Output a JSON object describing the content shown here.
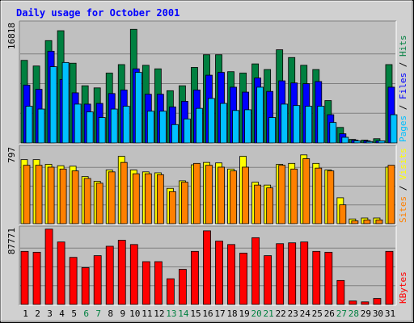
{
  "chart_data": {
    "type": "bar",
    "title": "Daily usage for October 2001",
    "categories": [
      "1",
      "2",
      "3",
      "4",
      "5",
      "6",
      "7",
      "8",
      "9",
      "10",
      "11",
      "12",
      "13",
      "14",
      "15",
      "16",
      "17",
      "18",
      "19",
      "20",
      "21",
      "22",
      "23",
      "24",
      "25",
      "26",
      "27",
      "28",
      "29",
      "30",
      "31"
    ],
    "weekend_days": [
      "6",
      "7",
      "13",
      "14",
      "20",
      "21",
      "27",
      "28"
    ],
    "colors": {
      "hits": "#008040",
      "files": "#0000ff",
      "pages": "#00c0ff",
      "visits": "#ffff00",
      "sites": "#ff8000",
      "kbytes": "#ff0000",
      "title": "#0000ff",
      "weekend_label": "#008040",
      "weekday_label": "#000000",
      "panel_bg": "#c0c0c0",
      "frame_bg": "#d0d0d0"
    },
    "panels": [
      {
        "id": "hits",
        "max_label": "16818",
        "ymax": 16818,
        "legend": [
          {
            "text": "Pages",
            "color": "#00c0ff"
          },
          {
            "text": "Files",
            "color": "#0000ff"
          },
          {
            "text": "Hits",
            "color": "#008040"
          }
        ],
        "series": [
          {
            "name": "Hits",
            "color": "#008040",
            "values": [
              11700,
              10900,
              14500,
              15900,
              11300,
              8100,
              7800,
              9900,
              11100,
              16100,
              11000,
              10500,
              7400,
              8100,
              10700,
              12500,
              12500,
              10100,
              9900,
              11200,
              10400,
              13200,
              12100,
              11000,
              10400,
              6000,
              2200,
              500,
              400,
              600,
              11100
            ]
          },
          {
            "name": "Files",
            "color": "#0000ff",
            "values": [
              8200,
              7600,
              13000,
              9000,
              7100,
              5500,
              5600,
              7000,
              7500,
              10500,
              6900,
              6900,
              5100,
              5900,
              7500,
              9600,
              10000,
              7900,
              7200,
              9200,
              7300,
              8800,
              8500,
              8400,
              8700,
              4000,
              1300,
              400,
              300,
              300,
              7900
            ]
          },
          {
            "name": "Pages",
            "color": "#00c0ff",
            "values": [
              5200,
              4800,
              10800,
              11400,
              5500,
              4400,
              3600,
              4800,
              5200,
              10000,
              4500,
              4500,
              2600,
              3400,
              4900,
              6300,
              5600,
              4600,
              4700,
              7900,
              3600,
              5500,
              5300,
              5200,
              5200,
              2900,
              800,
              300,
              200,
              300,
              4000
            ]
          }
        ]
      },
      {
        "id": "visits",
        "max_label": "797",
        "ymax": 797,
        "legend": [
          {
            "text": "Sites",
            "color": "#ff8000"
          },
          {
            "text": "Visits",
            "color": "#ffff00"
          }
        ],
        "series": [
          {
            "name": "Visits",
            "color": "#ffff00",
            "values": [
              680,
              680,
              630,
              615,
              610,
              500,
              450,
              570,
              715,
              570,
              550,
              540,
              375,
              455,
              625,
              650,
              645,
              580,
              715,
              440,
              410,
              630,
              640,
              730,
              640,
              570,
              275,
              50,
              60,
              60,
              600
            ]
          },
          {
            "name": "Sites",
            "color": "#ff8000",
            "values": [
              620,
              620,
              600,
              580,
              560,
              480,
              430,
              550,
              650,
              530,
              530,
              520,
              340,
              440,
              640,
              620,
              600,
              560,
              600,
              410,
              380,
              620,
              580,
              690,
              590,
              560,
              200,
              30,
              40,
              40,
              620
            ]
          }
        ]
      },
      {
        "id": "kbytes",
        "max_label": "87771",
        "ymax": 87771,
        "legend": [
          {
            "text": "KBytes",
            "color": "#ff0000"
          }
        ],
        "series": [
          {
            "name": "KBytes",
            "color": "#ff0000",
            "values": [
              62000,
              61000,
              88000,
              73000,
              55000,
              43000,
              57000,
              68000,
              75000,
              70000,
              50000,
              50000,
              30000,
              41000,
              62000,
              86000,
              74000,
              70000,
              60000,
              78000,
              57000,
              71000,
              72000,
              73000,
              62000,
              61000,
              28000,
              4000,
              3000,
              7000,
              62000
            ]
          }
        ]
      }
    ]
  }
}
